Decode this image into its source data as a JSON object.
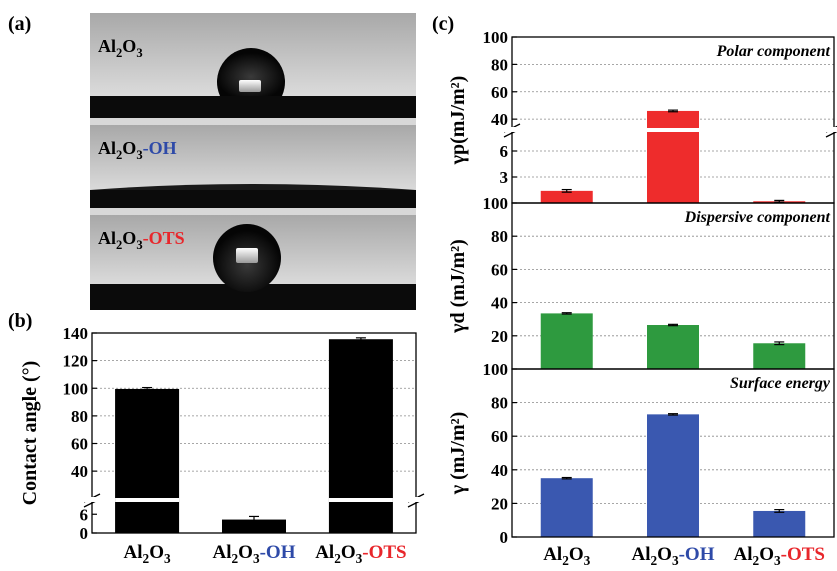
{
  "panels": {
    "a": "(a)",
    "b": "(b)",
    "c": "(c)"
  },
  "photos": [
    {
      "label_main": "Al",
      "label_sub": "2",
      "label_main2": "O",
      "label_sub2": "3",
      "suffix": "",
      "suffix_color": "#000000"
    },
    {
      "label_main": "Al",
      "label_sub": "2",
      "label_main2": "O",
      "label_sub2": "3",
      "suffix": "-OH",
      "suffix_color": "#2e4aa8"
    },
    {
      "label_main": "Al",
      "label_sub": "2",
      "label_main2": "O",
      "label_sub2": "3",
      "suffix": "-OTS",
      "suffix_color": "#e8262b"
    }
  ],
  "categories": [
    {
      "base": "Al",
      "sub1": "2",
      "mid": "O",
      "sub2": "3",
      "suffix": "",
      "suffix_color": "#000000"
    },
    {
      "base": "Al",
      "sub1": "2",
      "mid": "O",
      "sub2": "3",
      "suffix": "-OH",
      "suffix_color": "#2e4aa8"
    },
    {
      "base": "Al",
      "sub1": "2",
      "mid": "O",
      "sub2": "3",
      "suffix": "-OTS",
      "suffix_color": "#e8262b"
    }
  ],
  "chart_data": [
    {
      "id": "b",
      "type": "bar",
      "ylabel": "Contact angle (°)",
      "values": [
        99.5,
        4.3,
        135.5
      ],
      "errors": [
        1.0,
        1.0,
        1.0
      ],
      "color": "#000000",
      "axis_break": true,
      "upper_range": [
        22,
        140
      ],
      "lower_range": [
        0,
        8
      ],
      "upper_ticks": [
        40,
        60,
        80,
        100,
        120,
        140
      ],
      "lower_ticks": [
        0,
        6
      ]
    },
    {
      "id": "c1",
      "type": "bar",
      "title": "Polar component",
      "ylabel": "γp(mJ/m²)",
      "values": [
        1.4,
        46,
        0.2
      ],
      "errors": [
        0.15,
        0.6,
        0.1
      ],
      "color": "#ee2c2c",
      "axis_break": true,
      "upper_range": [
        35,
        100
      ],
      "lower_range": [
        0,
        7.5
      ],
      "upper_ticks": [
        40,
        60,
        80,
        100
      ],
      "lower_ticks": [
        3,
        6
      ]
    },
    {
      "id": "c2",
      "type": "bar",
      "title": "Dispersive component",
      "ylabel": "γd (mJ/m²)",
      "values": [
        33.5,
        26.5,
        15.5
      ],
      "errors": [
        0.4,
        0.4,
        0.8
      ],
      "color": "#2e9a3f",
      "ylim": [
        0,
        100
      ],
      "ticks": [
        20,
        40,
        60,
        80,
        100
      ]
    },
    {
      "id": "c3",
      "type": "bar",
      "title": "Surface energy",
      "ylabel": "γ (mJ/m²)",
      "values": [
        35,
        73,
        15.5
      ],
      "errors": [
        0.4,
        0.4,
        0.8
      ],
      "color": "#3a58b0",
      "ylim": [
        0,
        100
      ],
      "ticks": [
        0,
        20,
        40,
        60,
        80,
        100
      ]
    }
  ]
}
